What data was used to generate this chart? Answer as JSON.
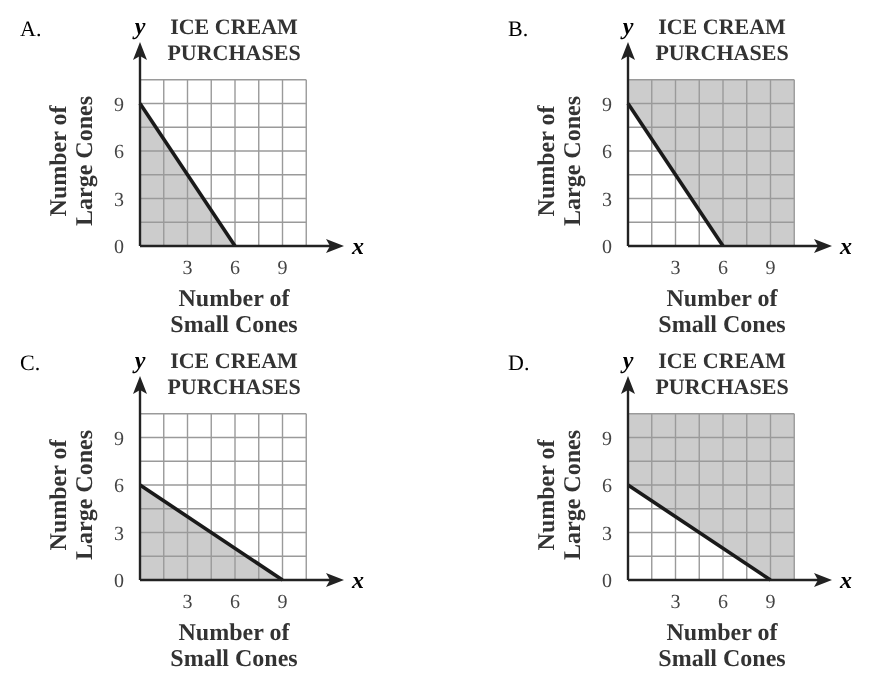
{
  "chart_data": [
    {
      "type": "line",
      "title": "ICE CREAM PURCHASES",
      "xlabel": "Number of Small Cones",
      "ylabel": "Number of Large Cones",
      "annotations": [
        "A.",
        "x",
        "y"
      ],
      "xlim": [
        0,
        12
      ],
      "ylim": [
        0,
        12
      ],
      "grid": true,
      "xticks": [
        {
          "value": 0,
          "label": null
        },
        {
          "value": 1.5,
          "label": null
        },
        3,
        {
          "value": 4.5,
          "label": null
        },
        6,
        {
          "value": 7.5,
          "label": null
        },
        9,
        {
          "value": 10.5,
          "label": null
        }
      ],
      "yticks": [
        0,
        {
          "value": 1.5,
          "label": null
        },
        3,
        {
          "value": 4.5,
          "label": null
        },
        6,
        {
          "value": 7.5,
          "label": null
        },
        9,
        {
          "value": 10.5,
          "label": null
        }
      ],
      "series": [
        {
          "color": "#1a1a1a",
          "x": [
            0,
            6
          ],
          "values": [
            9,
            0
          ],
          "lower": [
            0,
            0
          ],
          "upper": [
            9,
            0
          ]
        }
      ]
    },
    {
      "type": "line",
      "title": "ICE CREAM PURCHASES",
      "xlabel": "Number of Small Cones",
      "ylabel": "Number of Large Cones",
      "annotations": [
        "B.",
        "x",
        "y"
      ],
      "xlim": [
        0,
        12
      ],
      "ylim": [
        0,
        12
      ],
      "grid": true,
      "xticks": [
        {
          "value": 0,
          "label": null
        },
        {
          "value": 1.5,
          "label": null
        },
        3,
        {
          "value": 4.5,
          "label": null
        },
        6,
        {
          "value": 7.5,
          "label": null
        },
        9,
        {
          "value": 10.5,
          "label": null
        }
      ],
      "yticks": [
        0,
        {
          "value": 1.5,
          "label": null
        },
        3,
        {
          "value": 4.5,
          "label": null
        },
        6,
        {
          "value": 7.5,
          "label": null
        },
        9,
        {
          "value": 10.5,
          "label": null
        }
      ],
      "series": [
        {
          "color": "#1a1a1a",
          "x": [
            0,
            6,
            10.5
          ],
          "values": [
            9,
            0,
            null
          ],
          "lower": [
            9,
            0,
            0
          ],
          "upper": [
            10.5,
            10.5,
            10.5
          ]
        }
      ]
    },
    {
      "type": "line",
      "title": "ICE CREAM PURCHASES",
      "xlabel": "Number of Small Cones",
      "ylabel": "Number of Large Cones",
      "annotations": [
        "C.",
        "x",
        "y"
      ],
      "xlim": [
        0,
        12
      ],
      "ylim": [
        0,
        12
      ],
      "grid": true,
      "xticks": [
        {
          "value": 0,
          "label": null
        },
        {
          "value": 1.5,
          "label": null
        },
        3,
        {
          "value": 4.5,
          "label": null
        },
        6,
        {
          "value": 7.5,
          "label": null
        },
        9,
        {
          "value": 10.5,
          "label": null
        }
      ],
      "yticks": [
        0,
        {
          "value": 1.5,
          "label": null
        },
        3,
        {
          "value": 4.5,
          "label": null
        },
        6,
        {
          "value": 7.5,
          "label": null
        },
        9,
        {
          "value": 10.5,
          "label": null
        }
      ],
      "series": [
        {
          "color": "#1a1a1a",
          "x": [
            0,
            9
          ],
          "values": [
            6,
            0
          ],
          "lower": [
            0,
            0
          ],
          "upper": [
            6,
            0
          ]
        }
      ]
    },
    {
      "type": "line",
      "title": "ICE CREAM PURCHASES",
      "xlabel": "Number of Small Cones",
      "ylabel": "Number of Large Cones",
      "annotations": [
        "D.",
        "x",
        "y"
      ],
      "xlim": [
        0,
        12
      ],
      "ylim": [
        0,
        12
      ],
      "grid": true,
      "xticks": [
        {
          "value": 0,
          "label": null
        },
        {
          "value": 1.5,
          "label": null
        },
        3,
        {
          "value": 4.5,
          "label": null
        },
        6,
        {
          "value": 7.5,
          "label": null
        },
        9,
        {
          "value": 10.5,
          "label": null
        }
      ],
      "yticks": [
        0,
        {
          "value": 1.5,
          "label": null
        },
        3,
        {
          "value": 4.5,
          "label": null
        },
        6,
        {
          "value": 7.5,
          "label": null
        },
        9,
        {
          "value": 10.5,
          "label": null
        }
      ],
      "series": [
        {
          "color": "#1a1a1a",
          "x": [
            0,
            9,
            10.5
          ],
          "values": [
            6,
            0,
            null
          ],
          "lower": [
            6,
            0,
            0
          ],
          "upper": [
            10.5,
            10.5,
            10.5
          ]
        }
      ]
    }
  ]
}
